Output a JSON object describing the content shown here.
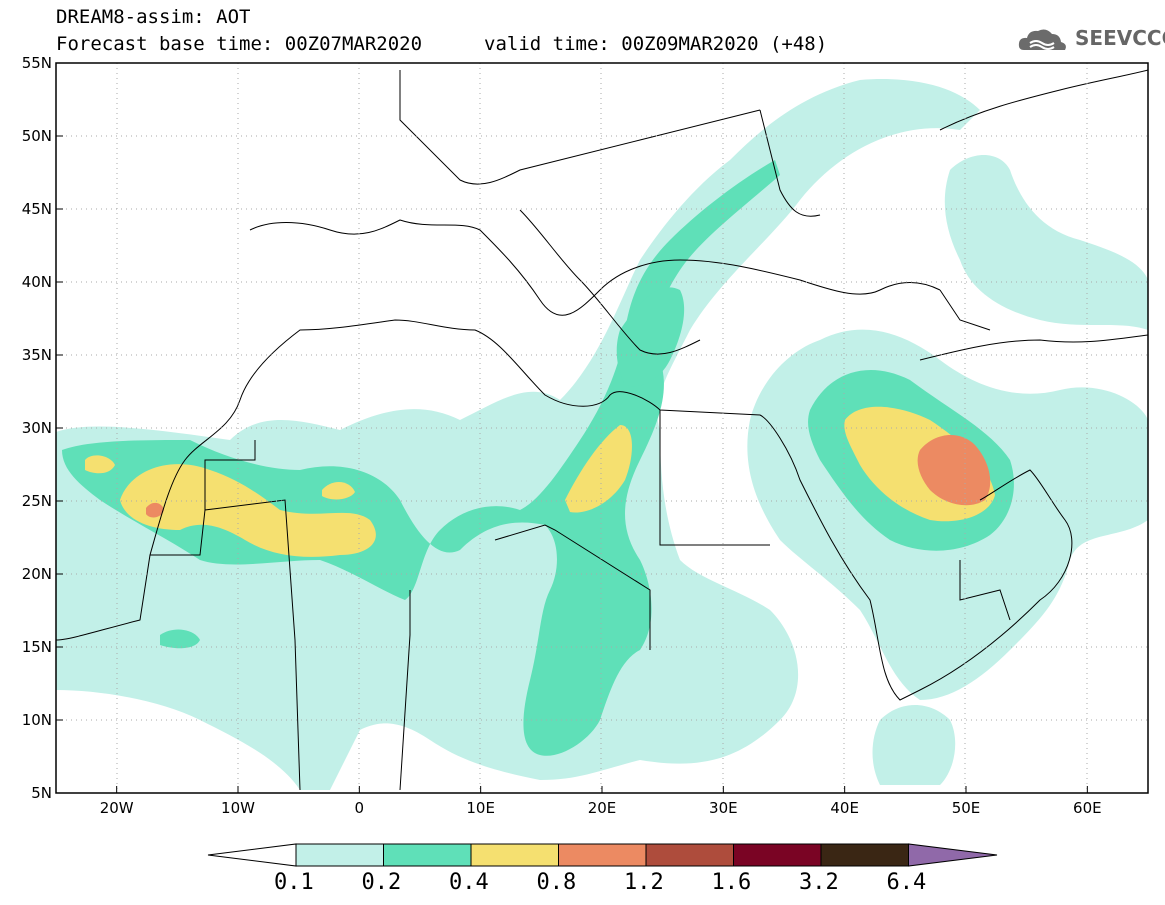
{
  "header": {
    "title_line1": "DREAM8-assim: AOT",
    "title_line2": "Forecast base time: 00Z07MAR2020",
    "valid_time": "valid time: 00Z09MAR2020 (+48)"
  },
  "logo": {
    "text": "SEEVCCC"
  },
  "map": {
    "lon_range": [
      -25,
      65
    ],
    "lat_range": [
      5,
      55
    ],
    "lon_ticks": [
      {
        "value": -20,
        "label": "20W"
      },
      {
        "value": -10,
        "label": "10W"
      },
      {
        "value": 0,
        "label": "0"
      },
      {
        "value": 10,
        "label": "10E"
      },
      {
        "value": 20,
        "label": "20E"
      },
      {
        "value": 30,
        "label": "30E"
      },
      {
        "value": 40,
        "label": "40E"
      },
      {
        "value": 50,
        "label": "50E"
      },
      {
        "value": 60,
        "label": "60E"
      }
    ],
    "lat_ticks": [
      {
        "value": 55,
        "label": "55N"
      },
      {
        "value": 50,
        "label": "50N"
      },
      {
        "value": 45,
        "label": "45N"
      },
      {
        "value": 40,
        "label": "40N"
      },
      {
        "value": 35,
        "label": "35N"
      },
      {
        "value": 30,
        "label": "30N"
      },
      {
        "value": 25,
        "label": "25N"
      },
      {
        "value": 20,
        "label": "20N"
      },
      {
        "value": 15,
        "label": "15N"
      },
      {
        "value": 10,
        "label": "10N"
      },
      {
        "value": 5,
        "label": "5N"
      }
    ]
  },
  "colorbar": {
    "colors": [
      "#c2f0e8",
      "#5fe0b8",
      "#f5e070",
      "#ec8a62",
      "#ae4c3c",
      "#7a0424",
      "#3a2614"
    ],
    "under_color": "#ffffff",
    "over_color": "#9069a9",
    "labels": [
      "0.1",
      "0.2",
      "0.4",
      "0.8",
      "1.2",
      "1.6",
      "3.2",
      "6.4"
    ]
  },
  "colors": {
    "level1": "#c2f0e8",
    "level2": "#5fe0b8",
    "level3": "#f5e070",
    "level4": "#ec8a62"
  }
}
